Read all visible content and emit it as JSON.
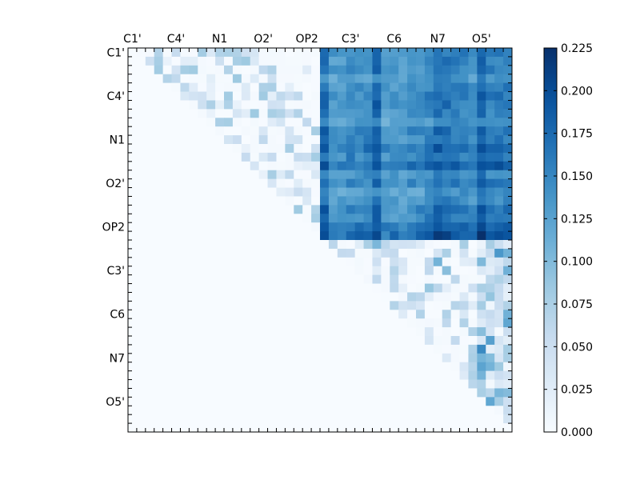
{
  "chart_data": {
    "type": "heatmap",
    "title": "",
    "xlabel": "",
    "ylabel": "",
    "matrix_size": 44,
    "x_tick_labels": [
      "C1'",
      "C4'",
      "N1",
      "O2'",
      "OP2",
      "C3'",
      "C6",
      "N7",
      "O5'"
    ],
    "y_tick_labels": [
      "C1'",
      "C4'",
      "N1",
      "O2'",
      "OP2",
      "C3'",
      "C6",
      "N7",
      "O5'"
    ],
    "tick_label_indices": [
      0,
      5,
      10,
      15,
      20,
      25,
      30,
      35,
      40
    ],
    "triangle": "upper",
    "band_boundary_index": 22,
    "colorbar": {
      "min": 0.0,
      "max": 0.225,
      "tick_values": [
        0.0,
        0.025,
        0.05,
        0.075,
        0.1,
        0.125,
        0.15,
        0.175,
        0.2,
        0.225
      ],
      "tick_labels": [
        "0.000",
        "0.025",
        "0.050",
        "0.075",
        "0.100",
        "0.125",
        "0.150",
        "0.175",
        "0.200",
        "0.225"
      ],
      "colormap": "Blues"
    },
    "colors": {
      "background": "#ffffff",
      "axis": "#000000",
      "low": "#f7fbff",
      "high": "#08306b"
    }
  }
}
